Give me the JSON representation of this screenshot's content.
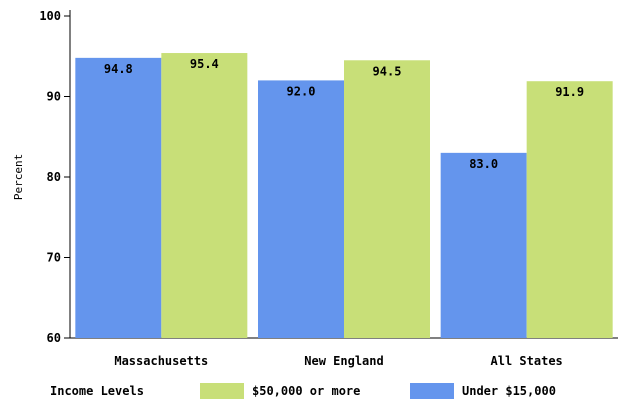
{
  "chart_data": {
    "type": "bar",
    "categories": [
      "Massachusetts",
      "New England",
      "All States"
    ],
    "series": [
      {
        "name": "Under $15,000",
        "values": [
          94.8,
          92.0,
          83.0
        ],
        "color": "#6495ed"
      },
      {
        "name": "$50,000 or more",
        "values": [
          95.4,
          94.5,
          91.9
        ],
        "color": "#c8df78"
      }
    ],
    "data_labels": [
      [
        "94.8",
        "92.0",
        "83.0"
      ],
      [
        "95.4",
        "94.5",
        "91.9"
      ]
    ],
    "xlabel": "",
    "ylabel": "Percent",
    "ylim": [
      60,
      100
    ],
    "yticks": [
      60,
      70,
      80,
      90,
      100
    ],
    "grid": false,
    "legend": {
      "title": "Income Levels",
      "placement": "bottom",
      "order": [
        1,
        0
      ]
    }
  }
}
